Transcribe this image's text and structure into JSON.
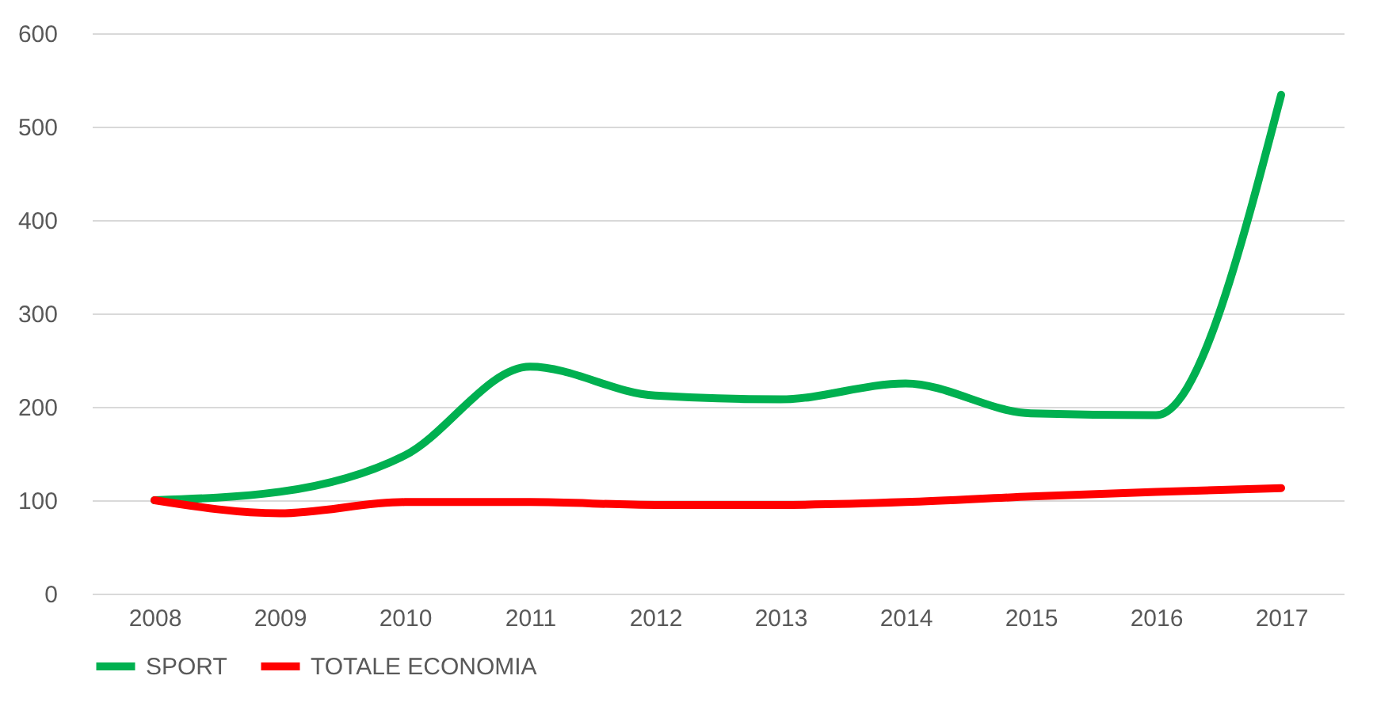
{
  "chart_data": {
    "type": "line",
    "categories": [
      "2008",
      "2009",
      "2010",
      "2011",
      "2012",
      "2013",
      "2014",
      "2015",
      "2016",
      "2017"
    ],
    "series": [
      {
        "name": "SPORT",
        "color": "#00b050",
        "values": [
          100,
          109,
          148,
          243,
          212,
          208,
          225,
          193,
          191,
          534
        ]
      },
      {
        "name": "TOTALE ECONOMIA",
        "color": "#ff0000",
        "values": [
          100,
          86,
          98,
          98,
          95,
          95,
          98,
          104,
          109,
          113
        ]
      }
    ],
    "ylim": [
      0,
      600
    ],
    "yticks": [
      0,
      100,
      200,
      300,
      400,
      500,
      600
    ],
    "grid": "y",
    "legend": "bottom",
    "marker": "none",
    "line_style": "solid"
  }
}
